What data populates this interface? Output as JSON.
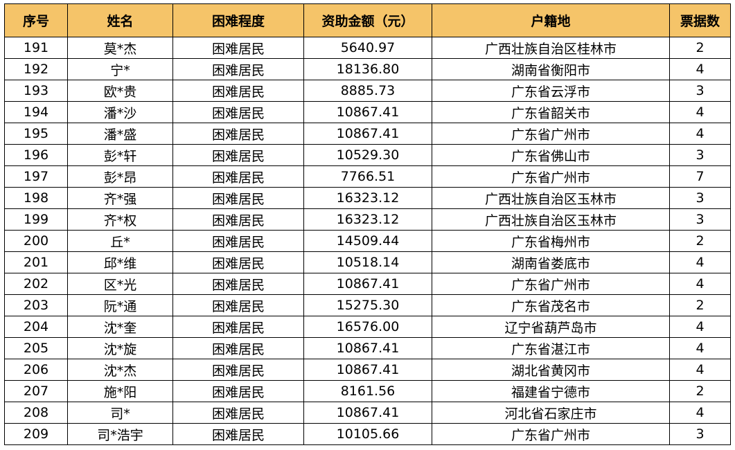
{
  "table": {
    "headers": [
      "序号",
      "姓名",
      "困难程度",
      "资助金额（元）",
      "户籍地",
      "票据数"
    ],
    "header_bg": "#f5c469",
    "rows": [
      [
        "191",
        "莫*杰",
        "困难居民",
        "5640.97",
        "广西壮族自治区桂林市",
        "2"
      ],
      [
        "192",
        "宁*",
        "困难居民",
        "18136.80",
        "湖南省衡阳市",
        "4"
      ],
      [
        "193",
        "欧*贵",
        "困难居民",
        "8885.73",
        "广东省云浮市",
        "3"
      ],
      [
        "194",
        "潘*沙",
        "困难居民",
        "10867.41",
        "广东省韶关市",
        "4"
      ],
      [
        "195",
        "潘*盛",
        "困难居民",
        "10867.41",
        "广东省广州市",
        "4"
      ],
      [
        "196",
        "彭*轩",
        "困难居民",
        "10529.30",
        "广东省佛山市",
        "3"
      ],
      [
        "197",
        "彭*昂",
        "困难居民",
        "7766.51",
        "广东省广州市",
        "7"
      ],
      [
        "198",
        "齐*强",
        "困难居民",
        "16323.12",
        "广西壮族自治区玉林市",
        "3"
      ],
      [
        "199",
        "齐*权",
        "困难居民",
        "16323.12",
        "广西壮族自治区玉林市",
        "3"
      ],
      [
        "200",
        "丘*",
        "困难居民",
        "14509.44",
        "广东省梅州市",
        "2"
      ],
      [
        "201",
        "邱*维",
        "困难居民",
        "10518.14",
        "湖南省娄底市",
        "4"
      ],
      [
        "202",
        "区*光",
        "困难居民",
        "10867.41",
        "广东省广州市",
        "4"
      ],
      [
        "203",
        "阮*通",
        "困难居民",
        "15275.30",
        "广东省茂名市",
        "2"
      ],
      [
        "204",
        "沈*奎",
        "困难居民",
        "16576.00",
        "辽宁省葫芦岛市",
        "4"
      ],
      [
        "205",
        "沈*旋",
        "困难居民",
        "10867.41",
        "广东省湛江市",
        "4"
      ],
      [
        "206",
        "沈*杰",
        "困难居民",
        "10867.41",
        "湖北省黄冈市",
        "4"
      ],
      [
        "207",
        "施*阳",
        "困难居民",
        "8161.56",
        "福建省宁德市",
        "2"
      ],
      [
        "208",
        "司*",
        "困难居民",
        "10867.41",
        "河北省石家庄市",
        "4"
      ],
      [
        "209",
        "司*浩宇",
        "困难居民",
        "10105.66",
        "广东省广州市",
        "3"
      ]
    ]
  }
}
